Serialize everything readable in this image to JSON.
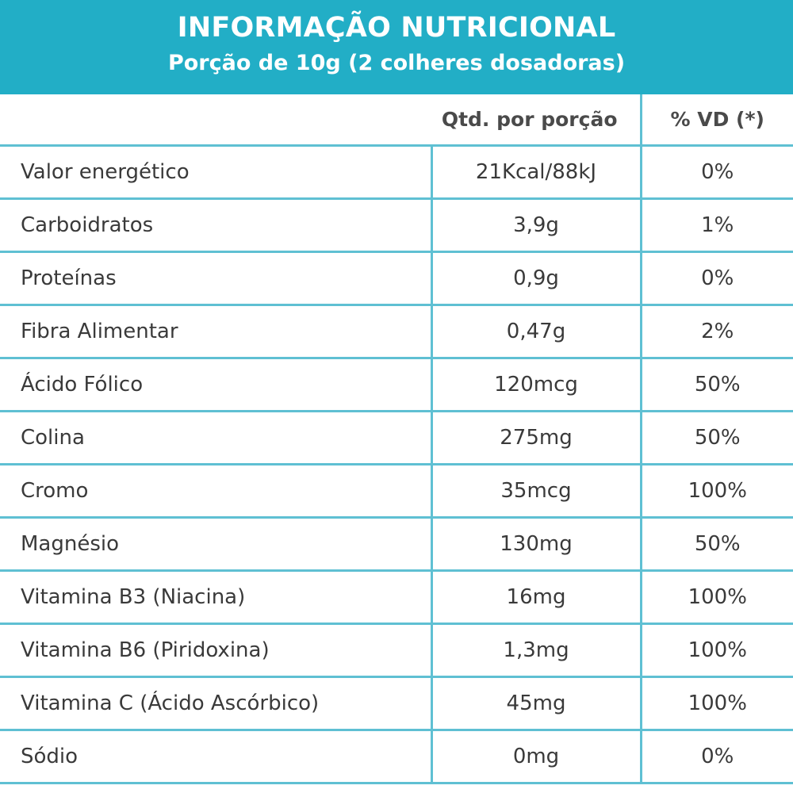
{
  "header": {
    "title": "INFORMAÇÃO NUTRICIONAL",
    "subtitle": "Porção de 10g (2  colheres dosadoras)"
  },
  "table": {
    "columns": [
      "",
      "Qtd. por porção",
      "% VD (*)"
    ],
    "rows": [
      {
        "name": "Valor energético",
        "qty": "21Kcal/88kJ",
        "vd": "0%"
      },
      {
        "name": "Carboidratos",
        "qty": "3,9g",
        "vd": "1%"
      },
      {
        "name": "Proteínas",
        "qty": "0,9g",
        "vd": "0%"
      },
      {
        "name": "Fibra Alimentar",
        "qty": "0,47g",
        "vd": "2%"
      },
      {
        "name": "Ácido Fólico",
        "qty": "120mcg",
        "vd": "50%"
      },
      {
        "name": "Colina",
        "qty": "275mg",
        "vd": "50%"
      },
      {
        "name": "Cromo",
        "qty": "35mcg",
        "vd": "100%"
      },
      {
        "name": "Magnésio",
        "qty": "130mg",
        "vd": "50%"
      },
      {
        "name": "Vitamina B3 (Niacina)",
        "qty": "16mg",
        "vd": "100%"
      },
      {
        "name": "Vitamina B6 (Piridoxina)",
        "qty": "1,3mg",
        "vd": "100%"
      },
      {
        "name": "Vitamina C (Ácido Ascórbico)",
        "qty": "45mg",
        "vd": "100%"
      },
      {
        "name": "Sódio",
        "qty": "0mg",
        "vd": "0%"
      }
    ]
  },
  "colors": {
    "accent": "#22aec6",
    "grid": "#5fc0d3"
  }
}
